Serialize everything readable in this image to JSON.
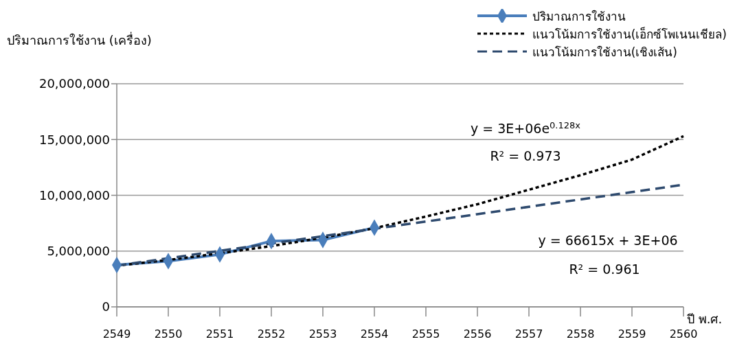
{
  "chart_data": {
    "type": "line",
    "ylabel": "ปริมาณการใช้งาน (เครื่อง)",
    "xlabel": "ปี พ.ศ.",
    "categories": [
      "2549",
      "2550",
      "2551",
      "2552",
      "2553",
      "2554",
      "2555",
      "2556",
      "2557",
      "2558",
      "2559",
      "2560"
    ],
    "series": [
      {
        "name": "ปริมาณการใช้งาน",
        "color": "#4a7ebb",
        "marker": "diamond",
        "line_style": "solid",
        "values": [
          3750000,
          4100000,
          4700000,
          5900000,
          6000000,
          7100000,
          null,
          null,
          null,
          null,
          null,
          null
        ]
      },
      {
        "name": "แนวโน้มการใช้งาน(เอ็กซ์โพเนนเชียล)",
        "color": "#000000",
        "marker": "none",
        "line_style": "dotted",
        "values": [
          3700000,
          4200000,
          4800000,
          5450000,
          6200000,
          7050000,
          8100000,
          9200000,
          10500000,
          11800000,
          13200000,
          15300000
        ]
      },
      {
        "name": "แนวโน้มการใช้งาน(เชิงเส้น)",
        "color": "#2e4a6e",
        "marker": "none",
        "line_style": "dashed",
        "values": [
          3700000,
          4360000,
          5020000,
          5680000,
          6340000,
          7000000,
          7650000,
          8310000,
          8970000,
          9630000,
          10290000,
          10950000
        ]
      }
    ],
    "ylim": [
      0,
      20000000
    ],
    "yticks": [
      0,
      {
        "value": 5000000,
        "label": "5,000,000"
      },
      {
        "value": 10000000,
        "label": "10,000,000"
      },
      {
        "value": 15000000,
        "label": "15,000,000"
      },
      {
        "value": 20000000,
        "label": "20,000,000"
      }
    ],
    "grid": "y",
    "legend": "top right",
    "annotations": [
      "y = 3E+06e$^{0.128x}$",
      "R² = 0.973",
      "y = 66615x + 3E+06",
      "R² = 0.961"
    ]
  }
}
